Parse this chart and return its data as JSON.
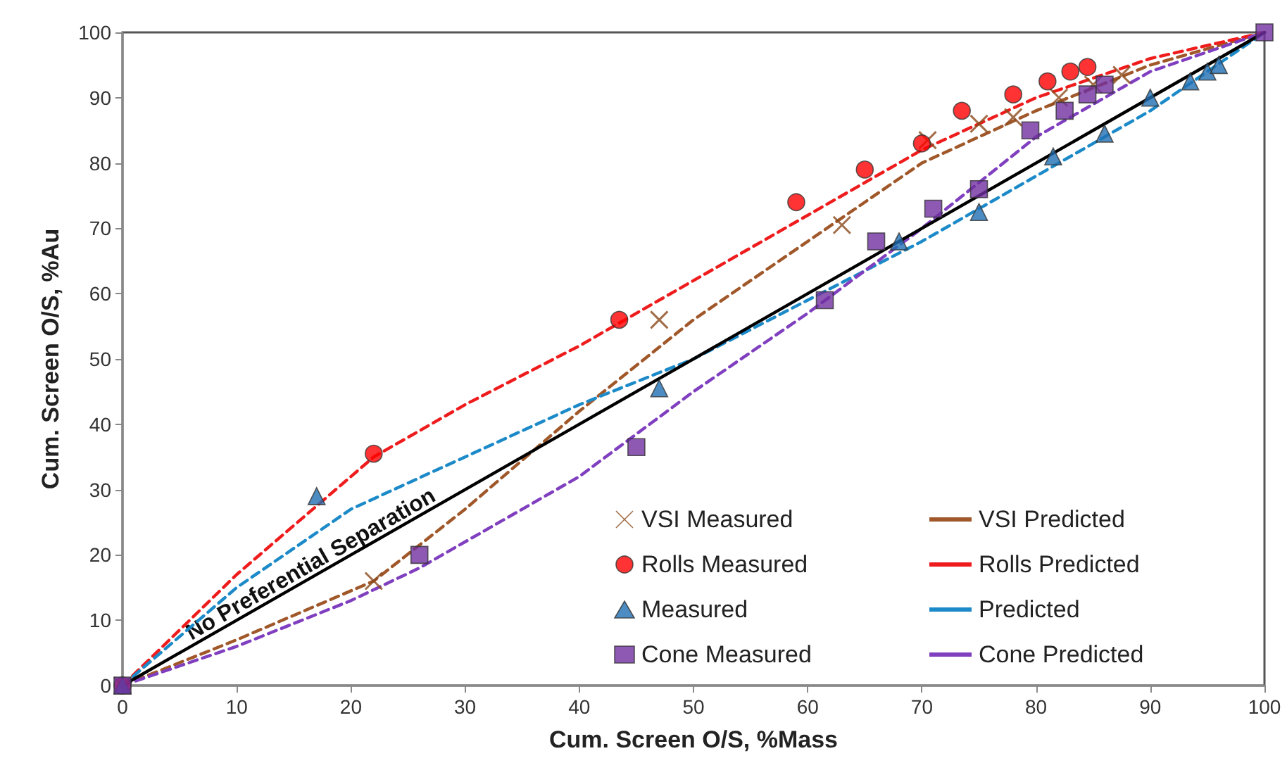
{
  "chart_data": {
    "type": "scatter",
    "xlabel": "Cum. Screen O/S, %Mass",
    "ylabel": "Cum. Screen O/S, %Au",
    "xlim": [
      0,
      100
    ],
    "xticks": [
      0,
      10,
      20,
      30,
      40,
      50,
      60,
      70,
      80,
      90,
      100
    ],
    "ylim": [
      0,
      100
    ],
    "yticks": [
      0,
      10,
      20,
      30,
      40,
      50,
      60,
      70,
      80,
      90,
      100
    ],
    "grid": false,
    "legend": "bottom right",
    "annotations": [
      {
        "text": "No Preferential Separation",
        "x": 17,
        "y": 17
      }
    ],
    "series": [
      {
        "name": "VSI Measured",
        "marker": "cross",
        "color": "#8b4a1c",
        "x": [
          0,
          22,
          47,
          63,
          70.5,
          75,
          78,
          82,
          85,
          87.5
        ],
        "values": [
          0,
          16,
          56,
          70.5,
          83.5,
          86,
          87,
          90,
          92,
          93.5
        ]
      },
      {
        "name": "Rolls Measured",
        "marker": "circle",
        "color": "#ff0000",
        "x": [
          0,
          22,
          43.5,
          59,
          65,
          70,
          73.5,
          78,
          81,
          83,
          84.5
        ],
        "values": [
          0,
          35.5,
          56,
          74,
          79,
          83,
          88,
          90.5,
          92.5,
          94,
          94.7
        ]
      },
      {
        "name": "Measured",
        "marker": "triangle",
        "color": "#1f6fb4",
        "x": [
          0,
          17,
          47,
          68,
          75,
          81.5,
          86,
          90,
          93.5,
          95,
          96
        ],
        "values": [
          0,
          29,
          45.5,
          68,
          72.5,
          81,
          84.5,
          90,
          92.5,
          94,
          95
        ]
      },
      {
        "name": "Cone Measured",
        "marker": "square",
        "color": "#7030a0",
        "x": [
          0,
          26,
          45,
          61.5,
          66,
          71,
          75,
          79.5,
          82.5,
          84.5,
          86,
          100
        ],
        "values": [
          0,
          20,
          36.5,
          59,
          68,
          73,
          76,
          85,
          88,
          90.5,
          92,
          100
        ]
      },
      {
        "name": "VSI Predicted",
        "type": "line",
        "line_style": "dashed",
        "marker": "none",
        "color": "#a0582a",
        "x": [
          0,
          10,
          22,
          30,
          40,
          50,
          60,
          70,
          80,
          90,
          100
        ],
        "values": [
          0,
          7,
          16,
          27,
          42,
          56,
          68,
          80,
          88,
          95,
          100
        ]
      },
      {
        "name": "Rolls Predicted",
        "type": "line",
        "line_style": "dashed",
        "marker": "none",
        "color": "#ee1c1c",
        "x": [
          0,
          10,
          22,
          30,
          40,
          50,
          60,
          70,
          80,
          90,
          100
        ],
        "values": [
          0,
          17,
          35,
          43,
          52,
          62,
          72,
          82,
          90,
          96,
          100
        ]
      },
      {
        "name": "Predicted",
        "type": "line",
        "line_style": "dashed",
        "marker": "none",
        "color": "#1c8ac8",
        "x": [
          0,
          10,
          20,
          30,
          40,
          50,
          60,
          70,
          80,
          90,
          100
        ],
        "values": [
          0,
          15,
          27,
          35,
          43,
          50,
          59,
          68,
          78,
          88,
          100
        ]
      },
      {
        "name": "Cone Predicted",
        "type": "line",
        "line_style": "dashed",
        "marker": "none",
        "color": "#7f3fbf",
        "x": [
          0,
          10,
          20,
          26,
          40,
          50,
          60,
          70,
          80,
          90,
          100
        ],
        "values": [
          0,
          6,
          13,
          18,
          32,
          45,
          57,
          70,
          84,
          94,
          100
        ]
      },
      {
        "type": "line",
        "line_style": "solid",
        "marker": "none",
        "color": "#000000",
        "x": [
          0,
          100
        ],
        "values": [
          0,
          100
        ]
      }
    ]
  }
}
